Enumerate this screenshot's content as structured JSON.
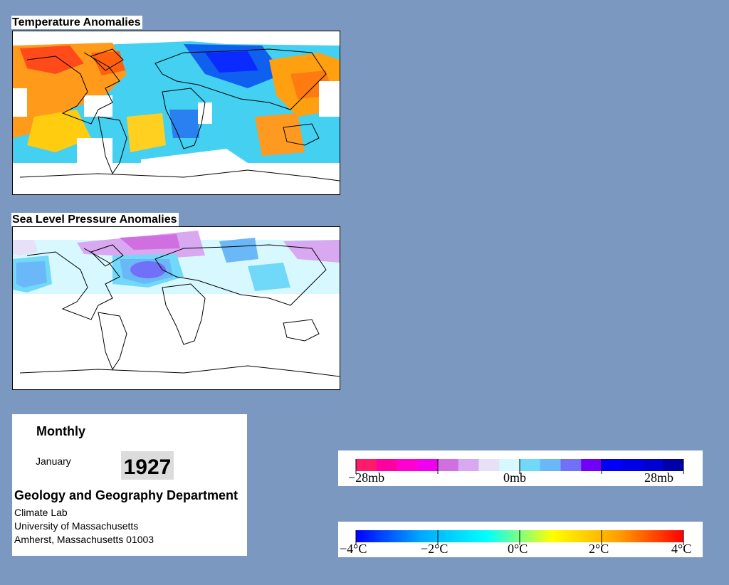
{
  "temperature_map": {
    "title": "Temperature Anomalies"
  },
  "pressure_map": {
    "title": "Sea Level Pressure Anomalies"
  },
  "info": {
    "period": "Monthly",
    "month": "January",
    "year": "1927",
    "department": "Geology and Geography Department",
    "lab": "Climate Lab",
    "university": "University of Massachusetts",
    "address": "Amherst, Massachusetts 01003"
  },
  "pressure_legend": {
    "labels": [
      "−28mb",
      "0mb",
      "28mb"
    ],
    "colors": [
      "#ff1a6c",
      "#ff00a0",
      "#ff00d0",
      "#f000f0",
      "#d070e0",
      "#d8a8f0",
      "#e6e0f8",
      "#d8f8ff",
      "#70d8f8",
      "#6ab8f8",
      "#7070f8",
      "#7000f8",
      "#0000f8",
      "#0000e8",
      "#0000d0",
      "#0000a8"
    ]
  },
  "temperature_legend": {
    "labels": [
      "−4°C",
      "−2°C",
      "0°C",
      "2°C",
      "4°C"
    ],
    "colors": [
      "#0000ff",
      "#00aaff",
      "#00ffff",
      "#ffff00",
      "#ffa000",
      "#ff0000"
    ]
  }
}
